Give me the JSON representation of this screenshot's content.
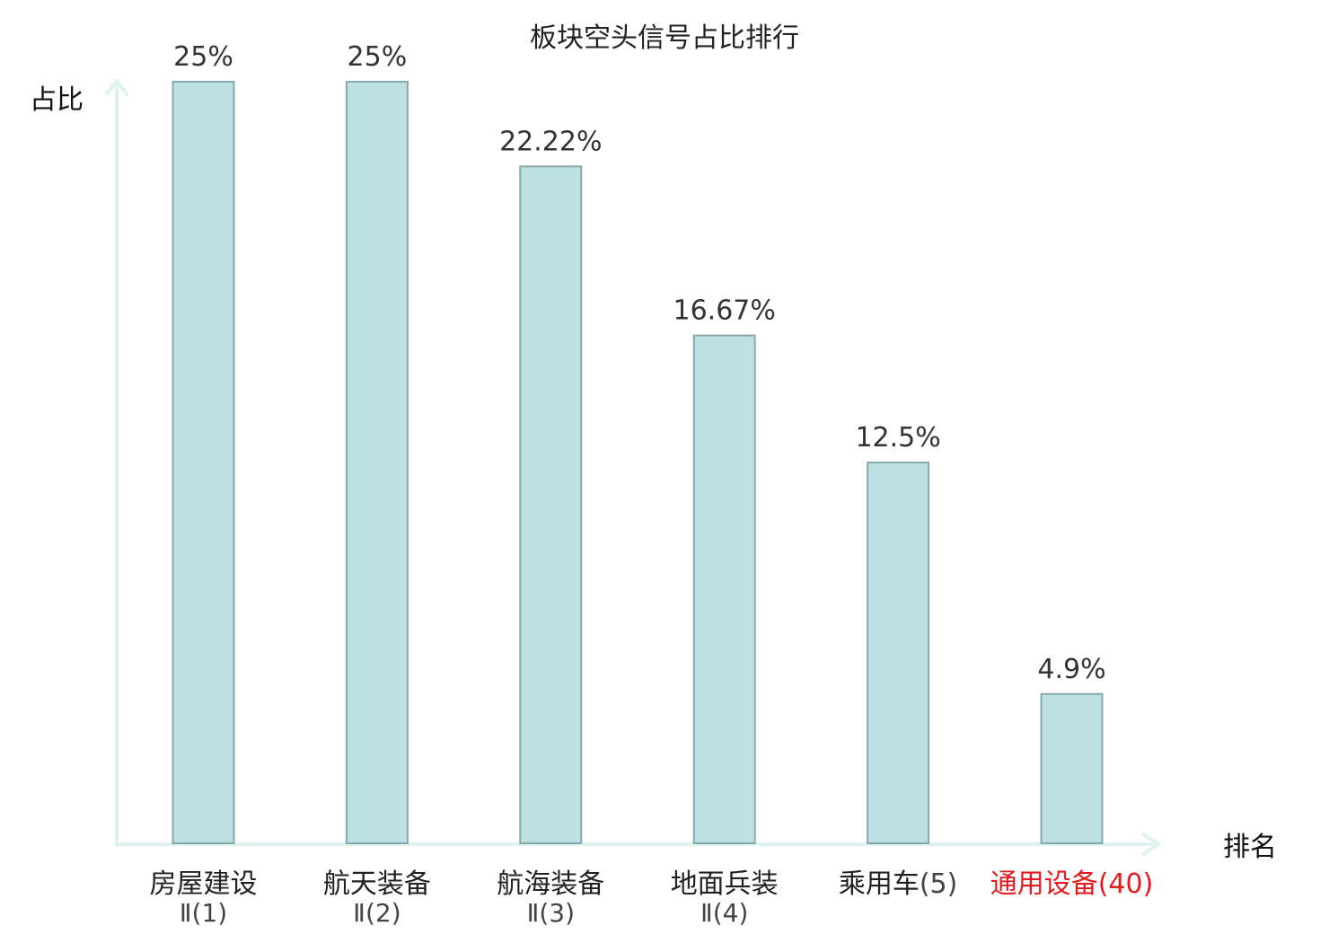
{
  "chart_data": {
    "type": "bar",
    "title": "板块空头信号占比排行",
    "ylabel": "占比",
    "xlabel": "排名",
    "ylim": [
      0,
      25
    ],
    "grid": false,
    "categories": [
      {
        "name": "房屋建设",
        "rank": "Ⅱ(1)",
        "highlight": false
      },
      {
        "name": "航天装备",
        "rank": "Ⅱ(2)",
        "highlight": false
      },
      {
        "name": "航海装备",
        "rank": "Ⅱ(3)",
        "highlight": false
      },
      {
        "name": "地面兵装",
        "rank": "Ⅱ(4)",
        "highlight": false
      },
      {
        "name": "乘用车",
        "rank": "(5)",
        "highlight": false
      },
      {
        "name": "通用设备",
        "rank": "(40)",
        "highlight": true
      }
    ],
    "values": [
      25,
      25,
      22.22,
      16.67,
      12.5,
      4.9
    ],
    "value_labels": [
      "25%",
      "25%",
      "22.22%",
      "16.67%",
      "12.5%",
      "4.9%"
    ]
  },
  "colors": {
    "bar_fill": "#bde0e3",
    "bar_stroke": "#86a9ab",
    "axis": "#e0f2ef",
    "label": "#222222",
    "rank": "#444444",
    "highlight": "#e8191c"
  }
}
